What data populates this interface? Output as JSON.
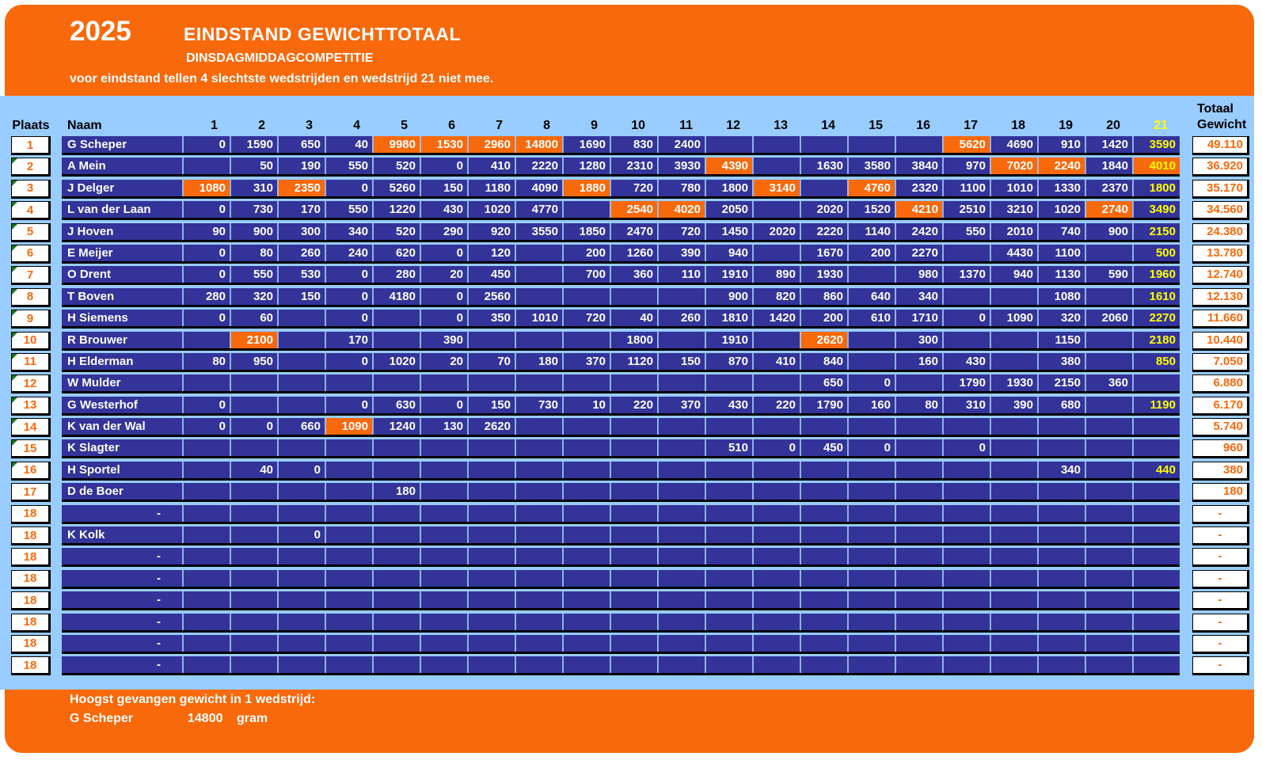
{
  "header": {
    "year": "2025",
    "title": "EINDSTAND GEWICHTTOTAAL",
    "subtitle": "DINSDAGMIDDAGCOMPETITIE",
    "note": "voor eindstand tellen 4 slechtste wedstrijden en wedstrijd 21 niet mee."
  },
  "colors": {
    "orange": "#F7690B",
    "light_blue": "#99CCFF",
    "navy": "#333399",
    "yellow": "#FFFF00",
    "marker_green": "#167816",
    "black": "#000000",
    "white": "#FFFFFF"
  },
  "table": {
    "col_plaats": "Plaats",
    "col_naam": "Naam",
    "match_columns": [
      "1",
      "2",
      "3",
      "4",
      "5",
      "6",
      "7",
      "8",
      "9",
      "10",
      "11",
      "12",
      "13",
      "14",
      "15",
      "16",
      "17",
      "18",
      "19",
      "20",
      "21"
    ],
    "col_totaal_line1": "Totaal",
    "col_totaal_line2": "Gewicht",
    "rows": [
      {
        "plaats": "1",
        "naam": "G Scheper",
        "marker": false,
        "orange": [
          5,
          6,
          7,
          8,
          17
        ],
        "totaal": "49.110",
        "values": [
          "0",
          "1590",
          "650",
          "40",
          "9980",
          "1530",
          "2960",
          "14800",
          "1690",
          "830",
          "2400",
          "",
          "",
          "",
          "",
          "",
          "5620",
          "4690",
          "910",
          "1420",
          "3590"
        ]
      },
      {
        "plaats": "2",
        "naam": "A Mein",
        "marker": true,
        "orange": [
          12,
          18,
          19,
          21
        ],
        "totaal": "36.920",
        "values": [
          "",
          "50",
          "190",
          "550",
          "520",
          "0",
          "410",
          "2220",
          "1280",
          "2310",
          "3930",
          "4390",
          "",
          "1630",
          "3580",
          "3840",
          "970",
          "7020",
          "2240",
          "1840",
          "4010"
        ]
      },
      {
        "plaats": "3",
        "naam": "J Delger",
        "marker": true,
        "orange": [
          1,
          3,
          9,
          13,
          15
        ],
        "totaal": "35.170",
        "values": [
          "1080",
          "310",
          "2350",
          "0",
          "5260",
          "150",
          "1180",
          "4090",
          "1880",
          "720",
          "780",
          "1800",
          "3140",
          "",
          "4760",
          "2320",
          "1100",
          "1010",
          "1330",
          "2370",
          "1800"
        ]
      },
      {
        "plaats": "4",
        "naam": "L van der Laan",
        "marker": true,
        "orange": [
          10,
          11,
          16,
          20
        ],
        "totaal": "34.560",
        "values": [
          "0",
          "730",
          "170",
          "550",
          "1220",
          "430",
          "1020",
          "4770",
          "",
          "2540",
          "4020",
          "2050",
          "",
          "2020",
          "1520",
          "4210",
          "2510",
          "3210",
          "1020",
          "2740",
          "3490"
        ]
      },
      {
        "plaats": "5",
        "naam": "J Hoven",
        "marker": true,
        "orange": [],
        "totaal": "24.380",
        "values": [
          "90",
          "900",
          "300",
          "340",
          "520",
          "290",
          "920",
          "3550",
          "1850",
          "2470",
          "720",
          "1450",
          "2020",
          "2220",
          "1140",
          "2420",
          "550",
          "2010",
          "740",
          "900",
          "2150"
        ]
      },
      {
        "plaats": "6",
        "naam": "E Meijer",
        "marker": true,
        "orange": [],
        "totaal": "13.780",
        "values": [
          "0",
          "80",
          "260",
          "240",
          "620",
          "0",
          "120",
          "",
          "200",
          "1260",
          "390",
          "940",
          "",
          "1670",
          "200",
          "2270",
          "",
          "4430",
          "1100",
          "",
          "500"
        ]
      },
      {
        "plaats": "7",
        "naam": "O Drent",
        "marker": true,
        "orange": [],
        "totaal": "12.740",
        "values": [
          "0",
          "550",
          "530",
          "0",
          "280",
          "20",
          "450",
          "",
          "700",
          "360",
          "110",
          "1910",
          "890",
          "1930",
          "",
          "980",
          "1370",
          "940",
          "1130",
          "590",
          "1960"
        ]
      },
      {
        "plaats": "8",
        "naam": "T Boven",
        "marker": true,
        "orange": [],
        "totaal": "12.130",
        "values": [
          "280",
          "320",
          "150",
          "0",
          "4180",
          "0",
          "2560",
          "",
          "",
          "",
          "",
          "900",
          "820",
          "860",
          "640",
          "340",
          "",
          "",
          "1080",
          "",
          "1610"
        ]
      },
      {
        "plaats": "9",
        "naam": "H Siemens",
        "marker": true,
        "orange": [],
        "totaal": "11.660",
        "values": [
          "0",
          "60",
          "",
          "0",
          "",
          "0",
          "350",
          "1010",
          "720",
          "40",
          "260",
          "1810",
          "1420",
          "200",
          "610",
          "1710",
          "0",
          "1090",
          "320",
          "2060",
          "2270"
        ]
      },
      {
        "plaats": "10",
        "naam": "R Brouwer",
        "marker": true,
        "orange": [
          2,
          14
        ],
        "totaal": "10.440",
        "values": [
          "",
          "2100",
          "",
          "170",
          "",
          "390",
          "",
          "",
          "",
          "1800",
          "",
          "1910",
          "",
          "2620",
          "",
          "300",
          "",
          "",
          "1150",
          "",
          "2180"
        ]
      },
      {
        "plaats": "11",
        "naam": "H Elderman",
        "marker": true,
        "orange": [],
        "totaal": "7.050",
        "values": [
          "80",
          "950",
          "",
          "0",
          "1020",
          "20",
          "70",
          "180",
          "370",
          "1120",
          "150",
          "870",
          "410",
          "840",
          "",
          "160",
          "430",
          "",
          "380",
          "",
          "850"
        ]
      },
      {
        "plaats": "12",
        "naam": "W Mulder",
        "marker": true,
        "orange": [],
        "totaal": "6.880",
        "values": [
          "",
          "",
          "",
          "",
          "",
          "",
          "",
          "",
          "",
          "",
          "",
          "",
          "",
          "650",
          "0",
          "",
          "1790",
          "1930",
          "2150",
          "360",
          ""
        ]
      },
      {
        "plaats": "13",
        "naam": "G Westerhof",
        "marker": true,
        "orange": [],
        "totaal": "6.170",
        "values": [
          "0",
          "",
          "",
          "0",
          "630",
          "0",
          "150",
          "730",
          "10",
          "220",
          "370",
          "430",
          "220",
          "1790",
          "160",
          "80",
          "310",
          "390",
          "680",
          "",
          "1190"
        ]
      },
      {
        "plaats": "14",
        "naam": "K van der Wal",
        "marker": true,
        "orange": [
          4
        ],
        "totaal": "5.740",
        "values": [
          "0",
          "0",
          "660",
          "1090",
          "1240",
          "130",
          "2620",
          "",
          "",
          "",
          "",
          "",
          "",
          "",
          "",
          "",
          "",
          "",
          "",
          "",
          ""
        ]
      },
      {
        "plaats": "15",
        "naam": "K Slagter",
        "marker": true,
        "orange": [],
        "totaal": "960",
        "values": [
          "",
          "",
          "",
          "",
          "",
          "",
          "",
          "",
          "",
          "",
          "",
          "510",
          "0",
          "450",
          "0",
          "",
          "0",
          "",
          "",
          "",
          ""
        ]
      },
      {
        "plaats": "16",
        "naam": "H Sportel",
        "marker": true,
        "orange": [],
        "totaal": "380",
        "values": [
          "",
          "40",
          "0",
          "",
          "",
          "",
          "",
          "",
          "",
          "",
          "",
          "",
          "",
          "",
          "",
          "",
          "",
          "",
          "340",
          "",
          "440"
        ]
      },
      {
        "plaats": "17",
        "naam": "D de Boer",
        "marker": false,
        "orange": [],
        "totaal": "180",
        "values": [
          "",
          "",
          "",
          "",
          "180",
          "",
          "",
          "",
          "",
          "",
          "",
          "",
          "",
          "",
          "",
          "",
          "",
          "",
          "",
          "",
          ""
        ]
      },
      {
        "plaats": "18",
        "naam": "-",
        "marker": false,
        "orange": [],
        "totaal": "-",
        "values": [
          "",
          "",
          "",
          "",
          "",
          "",
          "",
          "",
          "",
          "",
          "",
          "",
          "",
          "",
          "",
          "",
          "",
          "",
          "",
          "",
          ""
        ]
      },
      {
        "plaats": "18",
        "naam": "K Kolk",
        "marker": false,
        "orange": [],
        "totaal": "-",
        "values": [
          "",
          "",
          "0",
          "",
          "",
          "",
          "",
          "",
          "",
          "",
          "",
          "",
          "",
          "",
          "",
          "",
          "",
          "",
          "",
          "",
          ""
        ]
      },
      {
        "plaats": "18",
        "naam": "-",
        "marker": false,
        "orange": [],
        "totaal": "-",
        "values": [
          "",
          "",
          "",
          "",
          "",
          "",
          "",
          "",
          "",
          "",
          "",
          "",
          "",
          "",
          "",
          "",
          "",
          "",
          "",
          "",
          ""
        ]
      },
      {
        "plaats": "18",
        "naam": "-",
        "marker": false,
        "orange": [],
        "totaal": "-",
        "values": [
          "",
          "",
          "",
          "",
          "",
          "",
          "",
          "",
          "",
          "",
          "",
          "",
          "",
          "",
          "",
          "",
          "",
          "",
          "",
          "",
          ""
        ]
      },
      {
        "plaats": "18",
        "naam": "-",
        "marker": false,
        "orange": [],
        "totaal": "-",
        "values": [
          "",
          "",
          "",
          "",
          "",
          "",
          "",
          "",
          "",
          "",
          "",
          "",
          "",
          "",
          "",
          "",
          "",
          "",
          "",
          "",
          ""
        ]
      },
      {
        "plaats": "18",
        "naam": "-",
        "marker": false,
        "orange": [],
        "totaal": "-",
        "values": [
          "",
          "",
          "",
          "",
          "",
          "",
          "",
          "",
          "",
          "",
          "",
          "",
          "",
          "",
          "",
          "",
          "",
          "",
          "",
          "",
          ""
        ]
      },
      {
        "plaats": "18",
        "naam": "-",
        "marker": false,
        "orange": [],
        "totaal": "-",
        "values": [
          "",
          "",
          "",
          "",
          "",
          "",
          "",
          "",
          "",
          "",
          "",
          "",
          "",
          "",
          "",
          "",
          "",
          "",
          "",
          "",
          ""
        ]
      },
      {
        "plaats": "18",
        "naam": "-",
        "marker": false,
        "orange": [],
        "totaal": "-",
        "values": [
          "",
          "",
          "",
          "",
          "",
          "",
          "",
          "",
          "",
          "",
          "",
          "",
          "",
          "",
          "",
          "",
          "",
          "",
          "",
          "",
          ""
        ]
      }
    ]
  },
  "footer": {
    "title": "Hoogst gevangen gewicht in 1 wedstrijd:",
    "record_holder": "G Scheper",
    "record_value": "14800",
    "record_unit": "gram"
  }
}
